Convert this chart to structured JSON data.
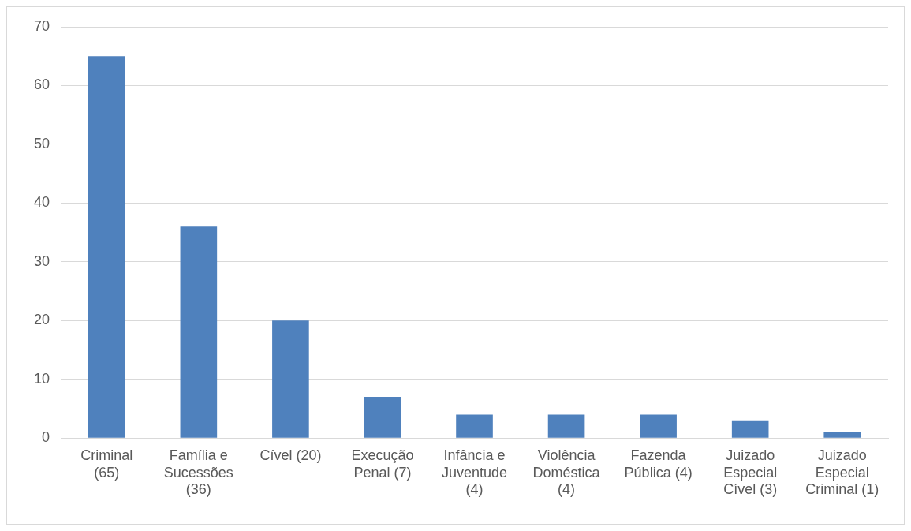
{
  "chart_data": {
    "type": "bar",
    "categories": [
      "Criminal (65)",
      "Família e Sucessões (36)",
      "Cível (20)",
      "Execução Penal (7)",
      "Infância e Juventude (4)",
      "Violência Doméstica (4)",
      "Fazenda Pública (4)",
      "Juizado Especial Cível (3)",
      "Juizado Especial Criminal (1)"
    ],
    "values": [
      65,
      36,
      20,
      7,
      4,
      4,
      4,
      3,
      1
    ],
    "color": "#4f81bd",
    "ylim": [
      0,
      70
    ],
    "yticks": [
      0,
      10,
      20,
      30,
      40,
      50,
      60,
      70
    ],
    "grid": "y",
    "legend": false
  }
}
